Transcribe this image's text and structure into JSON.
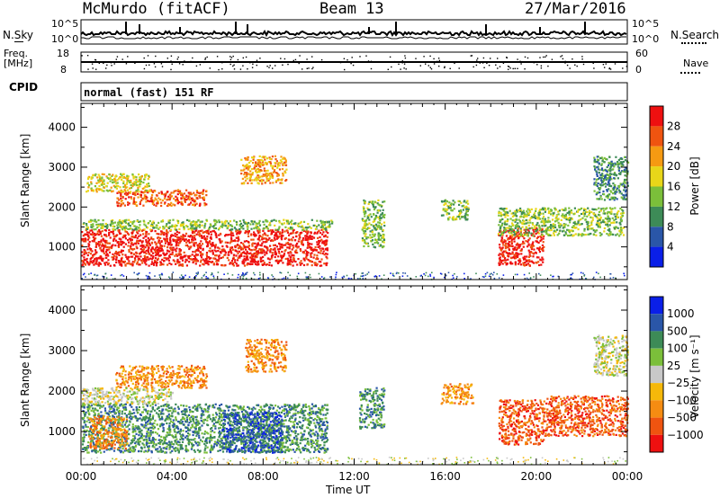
{
  "header": {
    "station": "McMurdo (fitACF)",
    "beam": "Beam 13",
    "date": "27/Mar/2016"
  },
  "noise_panel": {
    "left_label": "N.Sky",
    "right_label": "N.Search",
    "tick_top": "10^5",
    "tick_bottom": "10^0"
  },
  "freq_panel": {
    "left_label_1": "Freq.",
    "left_label_2": "[MHz]",
    "tick_top": "18",
    "tick_bottom": "8",
    "right_tick_top": "60",
    "right_tick_bottom": "0",
    "right_label": "Nave"
  },
  "cpid": {
    "label": "CPID",
    "value": "normal (fast) 151 RF"
  },
  "colors": {
    "power": [
      "#0a1fe8",
      "#2a56a8",
      "#3d8b57",
      "#7bbf3a",
      "#e8d619",
      "#f59a12",
      "#ef5410",
      "#ee1010"
    ],
    "velocity": [
      "#0a1fe8",
      "#2a56a8",
      "#3d8b57",
      "#7bbf3a",
      "#c8c8c8",
      "#f5b80a",
      "#f58c12",
      "#ef5410",
      "#ee1010"
    ]
  },
  "chart_data": [
    {
      "type": "heatmap",
      "title": "",
      "ylabel": "Slant Range [km]",
      "xlabel": "",
      "ylim": [
        180,
        4600
      ],
      "xlim": [
        0,
        24
      ],
      "yticks": [
        "1000",
        "2000",
        "3000",
        "4000"
      ],
      "colorbar": {
        "label": "Power [dB]",
        "ticks": [
          "4",
          "8",
          "12",
          "16",
          "20",
          "24",
          "28"
        ]
      },
      "regions": [
        {
          "t0": 0.0,
          "t1": 10.8,
          "r0": 550,
          "r1": 1450,
          "level": 7
        },
        {
          "t0": 1.5,
          "t1": 5.5,
          "r0": 2050,
          "r1": 2450,
          "level": 6
        },
        {
          "t0": 0.2,
          "t1": 3.0,
          "r0": 2400,
          "r1": 2850,
          "level": 4
        },
        {
          "t0": 0.0,
          "t1": 11.0,
          "r0": 1450,
          "r1": 1700,
          "level": 3
        },
        {
          "t0": 7.0,
          "t1": 9.0,
          "r0": 2600,
          "r1": 3300,
          "level": 5
        },
        {
          "t0": 12.3,
          "t1": 13.3,
          "r0": 1000,
          "r1": 2200,
          "level": 3
        },
        {
          "t0": 15.8,
          "t1": 17.0,
          "r0": 1700,
          "r1": 2200,
          "level": 3
        },
        {
          "t0": 18.3,
          "t1": 20.3,
          "r0": 550,
          "r1": 1500,
          "level": 7
        },
        {
          "t0": 18.3,
          "t1": 23.8,
          "r0": 1300,
          "r1": 2000,
          "level": 3
        },
        {
          "t0": 22.5,
          "t1": 24.0,
          "r0": 2200,
          "r1": 3300,
          "level": 2
        }
      ]
    },
    {
      "type": "heatmap",
      "title": "",
      "ylabel": "Slant Range [km]",
      "xlabel": "Time UT",
      "ylim": [
        180,
        4600
      ],
      "xlim": [
        0,
        24
      ],
      "yticks": [
        "1000",
        "2000",
        "3000",
        "4000"
      ],
      "xticks": [
        "00:00",
        "04:00",
        "08:00",
        "12:00",
        "16:00",
        "20:00",
        "00:00"
      ],
      "colorbar": {
        "label": "Velocity [m s⁻¹]",
        "ticks": [
          "1000",
          "500",
          "100",
          "25",
          "−25",
          "−100",
          "−500",
          "−1000"
        ]
      },
      "regions": [
        {
          "t0": 0.0,
          "t1": 10.8,
          "r0": 500,
          "r1": 1700,
          "level": 2
        },
        {
          "t0": 6.2,
          "t1": 8.8,
          "r0": 500,
          "r1": 1500,
          "level": 1
        },
        {
          "t0": 0.3,
          "t1": 2.0,
          "r0": 600,
          "r1": 1400,
          "level": 6
        },
        {
          "t0": 1.5,
          "t1": 5.5,
          "r0": 2100,
          "r1": 2650,
          "level": 6
        },
        {
          "t0": 0.0,
          "t1": 4.0,
          "r0": 1700,
          "r1": 2100,
          "level": 4
        },
        {
          "t0": 7.2,
          "t1": 9.0,
          "r0": 2500,
          "r1": 3300,
          "level": 6
        },
        {
          "t0": 12.2,
          "t1": 13.3,
          "r0": 1100,
          "r1": 2100,
          "level": 2
        },
        {
          "t0": 15.8,
          "t1": 17.2,
          "r0": 1700,
          "r1": 2200,
          "level": 6
        },
        {
          "t0": 18.3,
          "t1": 20.3,
          "r0": 700,
          "r1": 1800,
          "level": 7
        },
        {
          "t0": 20.3,
          "t1": 24.0,
          "r0": 900,
          "r1": 1900,
          "level": 7
        },
        {
          "t0": 22.5,
          "t1": 24.0,
          "r0": 2400,
          "r1": 3400,
          "level": 4
        }
      ]
    }
  ]
}
